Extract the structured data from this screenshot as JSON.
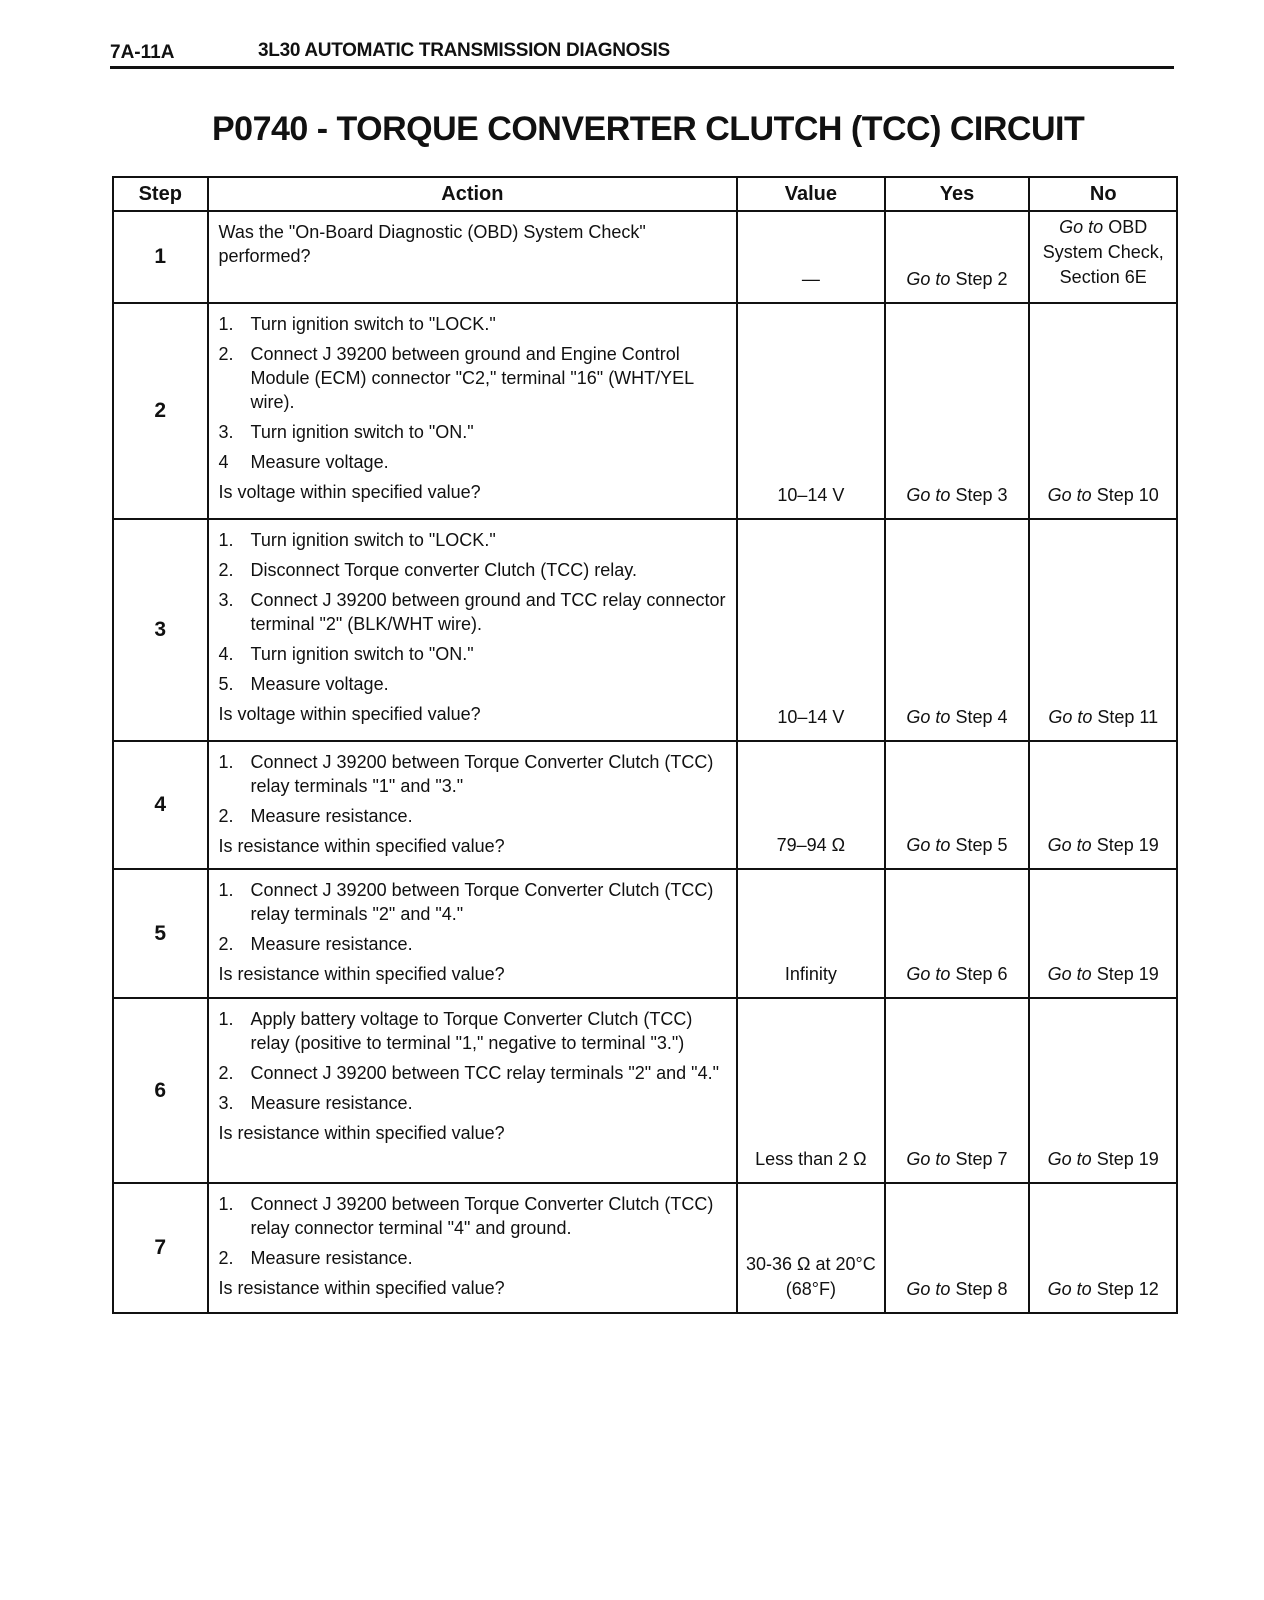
{
  "header": {
    "page_number": "7A-11A",
    "section": "3L30 AUTOMATIC TRANSMISSION DIAGNOSIS"
  },
  "title": "P0740 - TORQUE CONVERTER CLUTCH (TCC) CIRCUIT",
  "columns": [
    "Step",
    "Action",
    "Value",
    "Yes",
    "No"
  ],
  "goto_prefix": "Go to",
  "rows": [
    {
      "step": "1",
      "items": [],
      "question": "Was the \"On-Board Diagnostic (OBD) System Check\" performed?",
      "value": "—",
      "yes": "Step 2",
      "no": "OBD System Check, Section 6E"
    },
    {
      "step": "2",
      "items": [
        {
          "n": "1.",
          "t": "Turn ignition switch to \"LOCK.\""
        },
        {
          "n": "2.",
          "t": "Connect J 39200 between ground and Engine Control Module (ECM) connector \"C2,\" terminal \"16\" (WHT/YEL wire)."
        },
        {
          "n": "3.",
          "t": "Turn ignition switch to \"ON.\""
        },
        {
          "n": "4",
          "t": "Measure voltage."
        }
      ],
      "question": "Is voltage within specified value?",
      "value": "10–14 V",
      "yes": "Step 3",
      "no": "Step 10"
    },
    {
      "step": "3",
      "items": [
        {
          "n": "1.",
          "t": "Turn ignition switch to \"LOCK.\""
        },
        {
          "n": "2.",
          "t": "Disconnect Torque converter Clutch (TCC) relay."
        },
        {
          "n": "3.",
          "t": "Connect J 39200 between ground and TCC relay connector terminal \"2\" (BLK/WHT wire)."
        },
        {
          "n": "4.",
          "t": "Turn ignition switch to \"ON.\""
        },
        {
          "n": "5.",
          "t": "Measure voltage."
        }
      ],
      "question": "Is voltage within specified value?",
      "value": "10–14 V",
      "yes": "Step 4",
      "no": "Step 11"
    },
    {
      "step": "4",
      "items": [
        {
          "n": "1.",
          "t": "Connect J 39200 between Torque Converter Clutch (TCC) relay terminals \"1\" and \"3.\""
        },
        {
          "n": "2.",
          "t": "Measure resistance."
        }
      ],
      "question": "Is resistance within specified value?",
      "value": "79–94 Ω",
      "yes": "Step 5",
      "no": "Step 19"
    },
    {
      "step": "5",
      "items": [
        {
          "n": "1.",
          "t": "Connect J 39200 between Torque Converter Clutch (TCC) relay terminals \"2\" and \"4.\""
        },
        {
          "n": "2.",
          "t": "Measure resistance."
        }
      ],
      "question": "Is resistance within specified value?",
      "value": "Infinity",
      "yes": "Step 6",
      "no": "Step 19"
    },
    {
      "step": "6",
      "items": [
        {
          "n": "1.",
          "t": "Apply battery voltage to Torque Converter Clutch (TCC) relay (positive to terminal \"1,\" negative to terminal \"3.\")"
        },
        {
          "n": "2.",
          "t": "Connect J 39200 between TCC relay terminals \"2\" and \"4.\""
        },
        {
          "n": "3.",
          "t": "Measure resistance."
        }
      ],
      "question": "Is resistance within specified value?",
      "value": "Less than 2 Ω",
      "yes": "Step 7",
      "no": "Step 19"
    },
    {
      "step": "7",
      "items": [
        {
          "n": "1.",
          "t": "Connect J 39200 between Torque Converter Clutch (TCC) relay connector terminal \"4\" and ground."
        },
        {
          "n": "2.",
          "t": "Measure resistance."
        }
      ],
      "question": "Is resistance within specified value?",
      "value": "30-36 Ω at 20°C (68°F)",
      "yes": "Step 8",
      "no": "Step 12"
    }
  ]
}
